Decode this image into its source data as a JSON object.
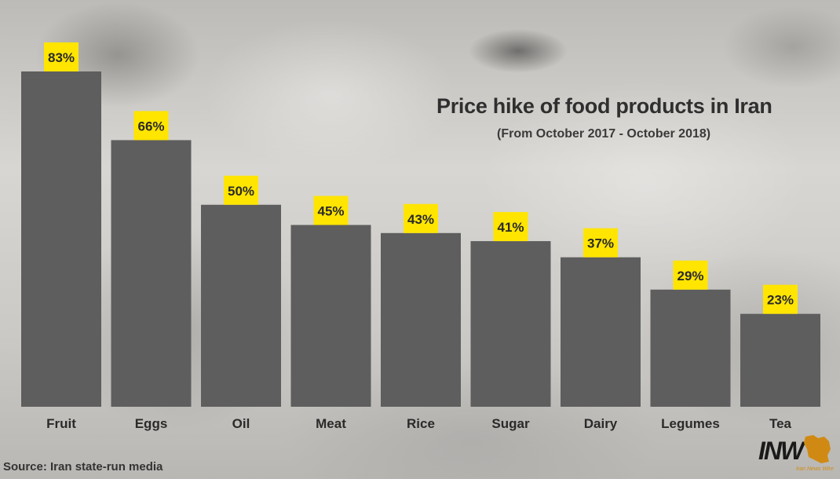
{
  "colors": {
    "bar": "#5e5e5e",
    "label_box": "#ffe500",
    "text": "#2a2a2a",
    "logo_accent": "#d08a14"
  },
  "source": "Source: Iran state-run media",
  "logo": {
    "mark": "INW",
    "subtitle": "Iran News Wire"
  },
  "chart_data": {
    "type": "bar",
    "title": "Price hike of food products in Iran",
    "subtitle": "(From October 2017 - October 2018)",
    "categories": [
      "Fruit",
      "Eggs",
      "Oil",
      "Meat",
      "Rice",
      "Sugar",
      "Dairy",
      "Legumes",
      "Tea"
    ],
    "values": [
      83,
      66,
      50,
      45,
      43,
      41,
      37,
      29,
      23
    ],
    "value_labels": [
      "83%",
      "66%",
      "50%",
      "45%",
      "43%",
      "41%",
      "37%",
      "29%",
      "23%"
    ],
    "unit": "%",
    "xlabel": "",
    "ylabel": "",
    "ylim": [
      0,
      83
    ],
    "grid": false,
    "legend": "none"
  }
}
